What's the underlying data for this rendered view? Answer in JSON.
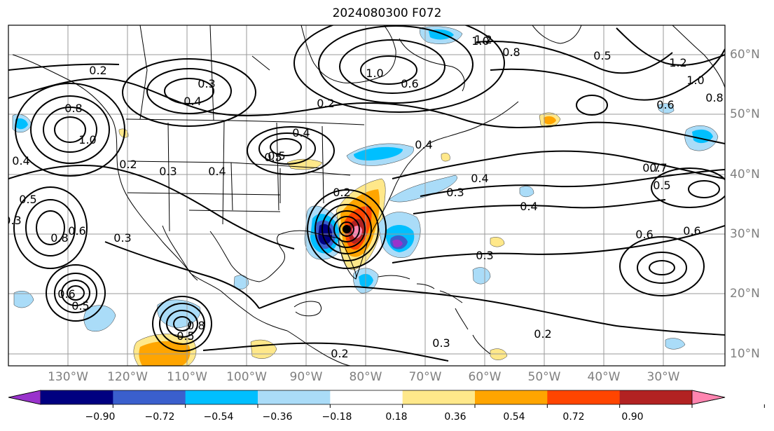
{
  "title": "2024080300 F072",
  "lat_labels": [
    "60°N",
    "50°N",
    "40°N",
    "30°N",
    "20°N",
    "10°N"
  ],
  "lon_labels": [
    "130°W",
    "120°W",
    "110°W",
    "100°W",
    "90°W",
    "80°W",
    "70°W",
    "60°W",
    "50°W",
    "40°W",
    "30°W"
  ],
  "colorbar": {
    "ticks": [
      "−0.90",
      "−0.72",
      "−0.54",
      "−0.36",
      "−0.18",
      "0.18",
      "0.36",
      "0.54",
      "0.72",
      "0.90"
    ],
    "colors": [
      "#9933cc",
      "#000080",
      "#3a5fcd",
      "#00bfff",
      "#aadcf8",
      "#ffffff",
      "#ffe88a",
      "#ffa500",
      "#ff4500",
      "#b22222",
      "#ff85b0"
    ]
  },
  "contour_labels": [
    "0.2",
    "0.4",
    "0.3",
    "1.0",
    "0.8",
    "0.6",
    "1.2",
    "0.7",
    "0.5",
    "0.3",
    "0.4",
    "0.2",
    "0.4",
    "0.5",
    "0.6",
    "0.8",
    "0.5",
    "0.6",
    "0.3",
    "0.2",
    "0.3",
    "0.4",
    "1.0",
    "1.0",
    "0.8",
    "0.2",
    "1.2",
    "1.0",
    "0.8",
    "0.6",
    "0.5",
    "0.6",
    "0.4",
    "0.7",
    "0.5",
    "0.5",
    "0.6",
    "0.3",
    "0.2",
    "0.3",
    "0.5",
    "0.8",
    "0.4",
    "0.2",
    "0.4",
    "0.3"
  ]
}
